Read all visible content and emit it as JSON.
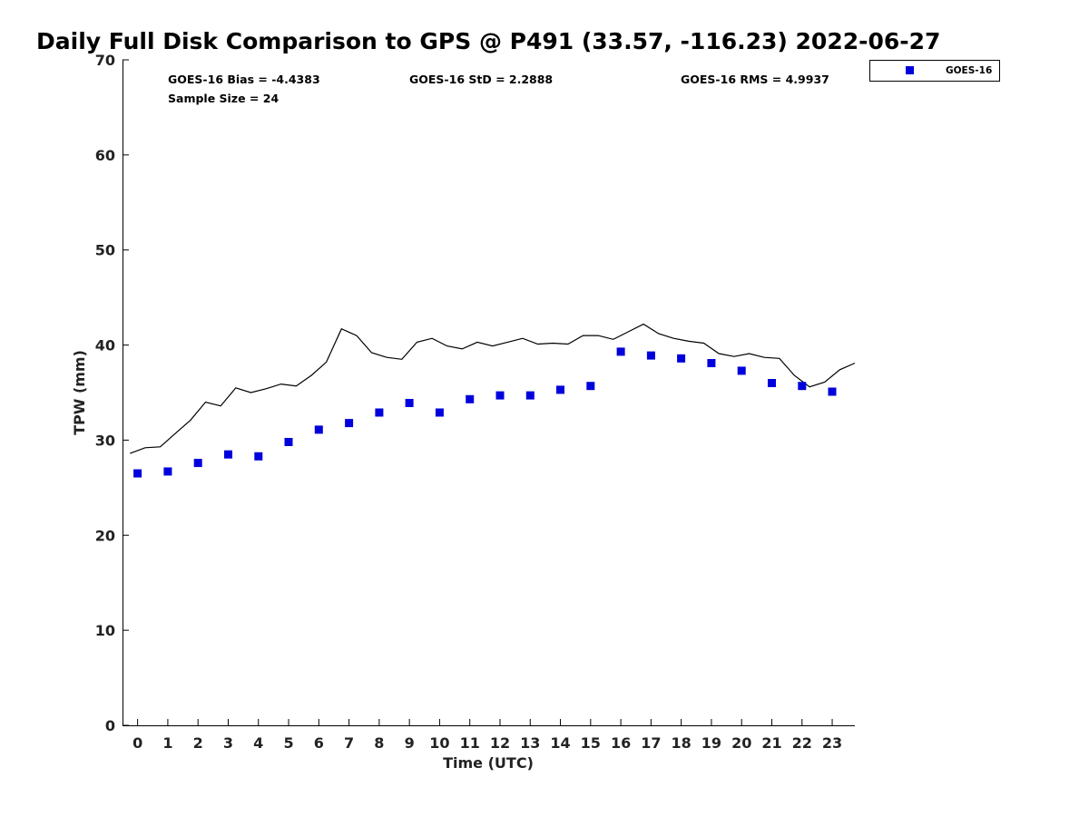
{
  "chart_data": {
    "type": "scatter",
    "title": "Daily Full Disk Comparison to GPS @ P491 (33.57, -116.23) 2022-06-27",
    "xlabel": "Time (UTC)",
    "ylabel": "TPW (mm)",
    "xlim": [
      -0.5,
      23.75
    ],
    "ylim": [
      0,
      70
    ],
    "x_ticks": [
      "0",
      "1",
      "2",
      "3",
      "4",
      "5",
      "6",
      "7",
      "8",
      "9",
      "10",
      "11",
      "12",
      "13",
      "14",
      "15",
      "16",
      "17",
      "18",
      "19",
      "20",
      "21",
      "22",
      "23"
    ],
    "y_ticks": [
      "0",
      "10",
      "20",
      "30",
      "40",
      "50",
      "60",
      "70"
    ],
    "grid": false,
    "legend": {
      "position": "outside-top-right",
      "entries": [
        "GOES-16"
      ]
    },
    "stats": {
      "bias": "GOES-16 Bias = -4.4383",
      "std": "GOES-16 StD = 2.2888",
      "rms": "GOES-16 RMS = 4.9937",
      "sample": "Sample Size = 24"
    },
    "series": [
      {
        "name": "GOES-16",
        "kind": "markers",
        "marker": "square",
        "color": "#0000dd",
        "x": [
          0,
          1,
          2,
          3,
          4,
          5,
          6,
          7,
          8,
          9,
          10,
          11,
          12,
          13,
          14,
          15,
          16,
          17,
          18,
          19,
          20,
          21,
          22,
          23
        ],
        "y": [
          26.5,
          26.7,
          27.6,
          28.5,
          28.3,
          29.8,
          31.1,
          31.8,
          32.9,
          33.9,
          32.9,
          34.3,
          34.7,
          34.7,
          35.3,
          35.7,
          39.3,
          38.9,
          38.6,
          38.1,
          37.3,
          36.0,
          35.7,
          35.1
        ]
      },
      {
        "kind": "line",
        "color": "#000000",
        "x": [
          -0.25,
          0.25,
          0.75,
          1.25,
          1.75,
          2.25,
          2.75,
          3.25,
          3.75,
          4.25,
          4.75,
          5.25,
          5.75,
          6.25,
          6.75,
          7.25,
          7.75,
          8.25,
          8.75,
          9.25,
          9.75,
          10.25,
          10.75,
          11.25,
          11.75,
          12.25,
          12.75,
          13.25,
          13.75,
          14.25,
          14.75,
          15.25,
          15.75,
          16.25,
          16.75,
          17.25,
          17.75,
          18.25,
          18.75,
          19.25,
          19.75,
          20.25,
          20.75,
          21.25,
          21.75,
          22.25,
          22.75,
          23.25,
          23.75
        ],
        "y": [
          28.6,
          29.2,
          29.3,
          30.7,
          32.1,
          34.0,
          33.6,
          35.5,
          35.0,
          35.4,
          35.9,
          35.7,
          36.8,
          38.2,
          41.7,
          41.0,
          39.2,
          38.7,
          38.5,
          40.3,
          40.7,
          39.9,
          39.6,
          40.3,
          39.9,
          40.3,
          40.7,
          40.1,
          40.2,
          40.1,
          41.0,
          41.0,
          40.6,
          41.4,
          42.2,
          41.2,
          40.7,
          40.4,
          40.2,
          39.1,
          38.8,
          39.1,
          38.7,
          38.6,
          36.8,
          35.6,
          36.1,
          37.4,
          38.1
        ]
      }
    ]
  }
}
